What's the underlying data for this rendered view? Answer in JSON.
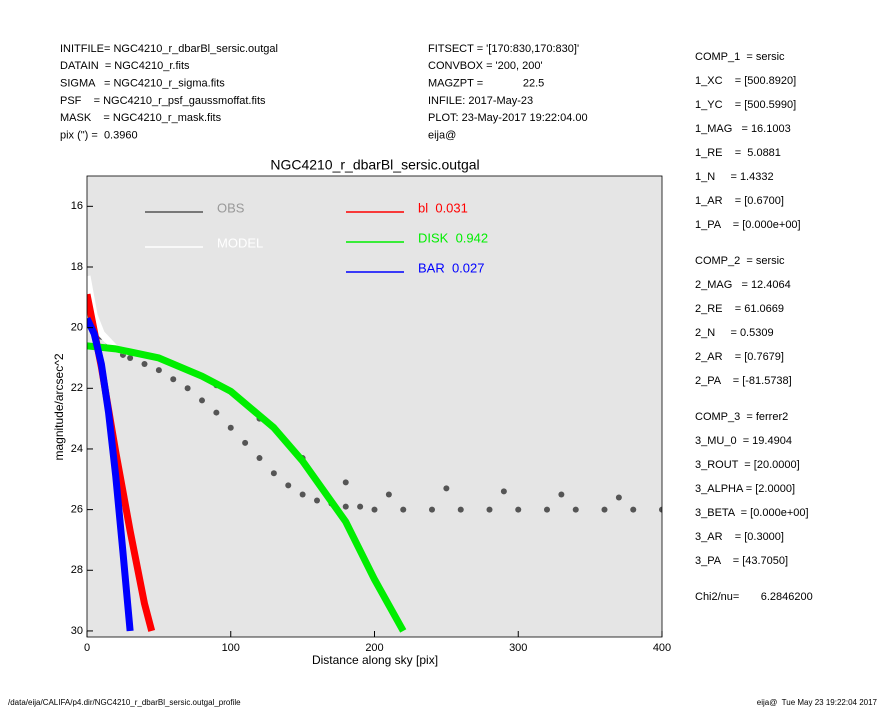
{
  "header": {
    "left": [
      "INITFILE= NGC4210_r_dbarBl_sersic.outgal",
      "DATAIN  = NGC4210_r.fits",
      "SIGMA   = NGC4210_r_sigma.fits",
      "PSF    = NGC4210_r_psf_gaussmoffat.fits",
      "MASK    = NGC4210_r_mask.fits",
      "pix (\") =  0.3960"
    ],
    "middle": [
      "FITSECT = '[170:830,170:830]'",
      "CONVBOX = '200, 200'",
      "MAGZPT =             22.5",
      "INFILE: 2017-May-23",
      "PLOT: 23-May-2017 19:22:04.00",
      "eija@"
    ]
  },
  "components": [
    [
      "COMP_1  = sersic",
      "1_XC    = [500.8920]",
      "1_YC    = [500.5990]",
      "1_MAG   = 16.1003",
      "1_RE    =  5.0881",
      "1_N     = 1.4332",
      "1_AR    = [0.6700]",
      "1_PA    = [0.000e+00]"
    ],
    [
      "COMP_2  = sersic",
      "2_MAG   = 12.4064",
      "2_RE    = 61.0669",
      "2_N     = 0.5309",
      "2_AR    = [0.7679]",
      "2_PA    = [-81.5738]"
    ],
    [
      "COMP_3  = ferrer2",
      "3_MU_0  = 19.4904",
      "3_ROUT  = [20.0000]",
      "3_ALPHA = [2.0000]",
      "3_BETA  = [0.000e+00]",
      "3_AR    = [0.3000]",
      "3_PA    = [43.7050]"
    ],
    [
      "Chi2/nu=       6.2846200"
    ]
  ],
  "footer": {
    "left": "/data/eija/CALIFA/p4.dir/NGC4210_r_dbarBl_sersic.outgal_profile",
    "right": "eija@  Tue May 23 19:22:04 2017"
  },
  "chart_data": {
    "type": "scatter",
    "title": "NGC4210_r_dbarBl_sersic.outgal",
    "x_label": "Distance along sky [pix]",
    "y_label": "magnitude/arcsec^2",
    "xlim": [
      0,
      400
    ],
    "xticks": [
      0,
      100,
      200,
      300,
      400
    ],
    "ylim": [
      30.2,
      15
    ],
    "yticks": [
      16,
      18,
      20,
      22,
      24,
      26,
      28,
      30
    ],
    "background": "#e5e5e5",
    "series": [
      {
        "name": "OBS",
        "color": "#555555",
        "marker": "dot",
        "x": [
          0,
          3,
          6,
          10,
          15,
          20,
          25,
          30,
          40,
          50,
          60,
          70,
          80,
          90,
          100,
          110,
          120,
          130,
          140,
          150,
          160,
          170,
          180,
          190,
          200,
          220,
          240,
          260,
          280,
          300,
          320,
          340,
          360,
          380,
          400,
          60,
          90,
          120,
          150,
          180,
          210,
          250,
          290,
          330,
          370
        ],
        "values": [
          18.4,
          19.3,
          19.9,
          20.3,
          20.5,
          20.7,
          20.9,
          21.0,
          21.2,
          21.4,
          21.7,
          22.0,
          22.4,
          22.8,
          23.3,
          23.8,
          24.3,
          24.8,
          25.2,
          25.5,
          25.7,
          25.8,
          25.9,
          25.9,
          26.0,
          26.0,
          26.0,
          26.0,
          26.0,
          26.0,
          26.0,
          26.0,
          26.0,
          26.0,
          26.0,
          21.2,
          21.9,
          23.0,
          24.3,
          25.1,
          25.5,
          25.3,
          25.4,
          25.5,
          25.6
        ]
      },
      {
        "name": "MODEL",
        "color": "#ffffff",
        "marker": "line",
        "x": [
          0,
          5,
          10,
          20,
          30
        ],
        "values": [
          18.3,
          19.6,
          20.2,
          20.7,
          20.8
        ]
      },
      {
        "name": "bl  0.031",
        "color": "#ff0000",
        "marker": "line",
        "x": [
          0,
          10,
          20,
          30,
          40,
          45
        ],
        "values": [
          18.9,
          21.3,
          24.1,
          26.7,
          29.1,
          30.0
        ]
      },
      {
        "name": "DISK  0.942",
        "color": "#00ee00",
        "marker": "line",
        "x": [
          0,
          20,
          50,
          80,
          100,
          130,
          150,
          180,
          200,
          220
        ],
        "values": [
          20.6,
          20.7,
          21.0,
          21.6,
          22.1,
          23.3,
          24.4,
          26.4,
          28.3,
          30.0
        ]
      },
      {
        "name": "BAR  0.027",
        "color": "#0000ff",
        "marker": "line",
        "x": [
          0,
          5,
          10,
          15,
          20,
          25,
          30
        ],
        "values": [
          19.7,
          20.2,
          21.2,
          22.8,
          24.9,
          27.4,
          30.0
        ]
      }
    ]
  }
}
